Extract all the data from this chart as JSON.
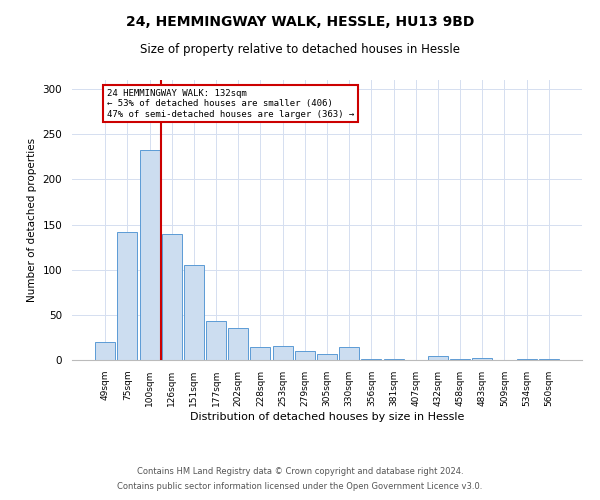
{
  "title": "24, HEMMINGWAY WALK, HESSLE, HU13 9BD",
  "subtitle": "Size of property relative to detached houses in Hessle",
  "xlabel": "Distribution of detached houses by size in Hessle",
  "ylabel": "Number of detached properties",
  "categories": [
    "49sqm",
    "75sqm",
    "100sqm",
    "126sqm",
    "151sqm",
    "177sqm",
    "202sqm",
    "228sqm",
    "253sqm",
    "279sqm",
    "305sqm",
    "330sqm",
    "356sqm",
    "381sqm",
    "407sqm",
    "432sqm",
    "458sqm",
    "483sqm",
    "509sqm",
    "534sqm",
    "560sqm"
  ],
  "values": [
    20,
    142,
    232,
    140,
    105,
    43,
    35,
    14,
    15,
    10,
    7,
    14,
    1,
    1,
    0,
    4,
    1,
    2,
    0,
    1,
    1
  ],
  "bar_color": "#ccddf0",
  "bar_edge_color": "#5b9bd5",
  "vline_index": 3,
  "vline_color": "#cc0000",
  "annotation_line1": "24 HEMMINGWAY WALK: 132sqm",
  "annotation_line2": "← 53% of detached houses are smaller (406)",
  "annotation_line3": "47% of semi-detached houses are larger (363) →",
  "annotation_box_color": "#ffffff",
  "annotation_box_edge": "#cc0000",
  "ylim": [
    0,
    310
  ],
  "yticks": [
    0,
    50,
    100,
    150,
    200,
    250,
    300
  ],
  "footer1": "Contains HM Land Registry data © Crown copyright and database right 2024.",
  "footer2": "Contains public sector information licensed under the Open Government Licence v3.0.",
  "bg_color": "#ffffff",
  "grid_color": "#d5dff0"
}
